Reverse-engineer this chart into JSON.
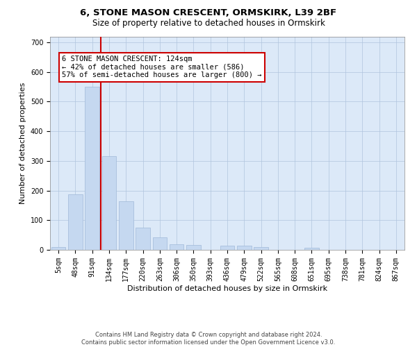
{
  "title1": "6, STONE MASON CRESCENT, ORMSKIRK, L39 2BF",
  "title2": "Size of property relative to detached houses in Ormskirk",
  "xlabel": "Distribution of detached houses by size in Ormskirk",
  "ylabel": "Number of detached properties",
  "bar_labels": [
    "5sqm",
    "48sqm",
    "91sqm",
    "134sqm",
    "177sqm",
    "220sqm",
    "263sqm",
    "306sqm",
    "350sqm",
    "393sqm",
    "436sqm",
    "479sqm",
    "522sqm",
    "565sqm",
    "608sqm",
    "651sqm",
    "695sqm",
    "738sqm",
    "781sqm",
    "824sqm",
    "867sqm"
  ],
  "bar_heights": [
    10,
    187,
    550,
    315,
    165,
    75,
    42,
    18,
    17,
    0,
    13,
    13,
    10,
    0,
    0,
    8,
    0,
    0,
    0,
    0,
    0
  ],
  "bar_color": "#c5d8f0",
  "bar_edge_color": "#a0b8d8",
  "vline_x": 2.5,
  "vline_color": "#cc0000",
  "annotation_text": "6 STONE MASON CRESCENT: 124sqm\n← 42% of detached houses are smaller (586)\n57% of semi-detached houses are larger (800) →",
  "annotation_box_color": "#ffffff",
  "annotation_box_edge": "#cc0000",
  "ylim": [
    0,
    720
  ],
  "background_color": "#dce9f8",
  "footer": "Contains HM Land Registry data © Crown copyright and database right 2024.\nContains public sector information licensed under the Open Government Licence v3.0.",
  "title1_fontsize": 9.5,
  "title2_fontsize": 8.5,
  "xlabel_fontsize": 8,
  "ylabel_fontsize": 8,
  "tick_fontsize": 7,
  "annotation_fontsize": 7.5
}
